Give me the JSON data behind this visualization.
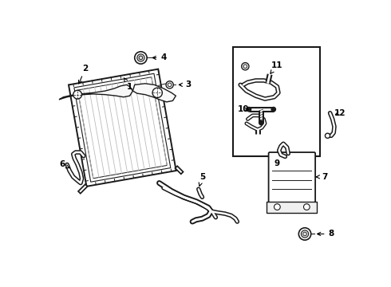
{
  "bg_color": "#ffffff",
  "lc": "#1a1a1a",
  "figsize": [
    4.9,
    3.6
  ],
  "dpi": 100,
  "xlim": [
    0,
    490
  ],
  "ylim": [
    0,
    360
  ]
}
